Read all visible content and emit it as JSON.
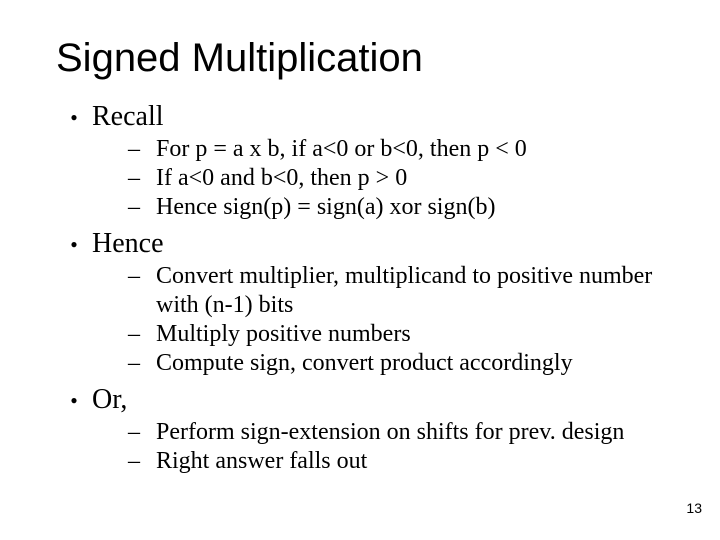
{
  "title": {
    "text": "Signed Multiplication",
    "fontsize": 40
  },
  "bullets": {
    "level1_fontsize": 28,
    "level2_fontsize": 24,
    "dot_char": "●",
    "dash_char": "–",
    "items": [
      {
        "label": "Recall",
        "sub": [
          "For p = a x b, if a<0 or b<0, then p < 0",
          "If a<0 and b<0, then p > 0",
          "Hence sign(p) = sign(a) xor sign(b)"
        ]
      },
      {
        "label": "Hence",
        "sub": [
          "Convert multiplier, multiplicand to positive number with (n-1) bits",
          "Multiply positive numbers",
          "Compute sign, convert product accordingly"
        ]
      },
      {
        "label": "Or,",
        "sub": [
          "Perform sign-extension on shifts for prev. design",
          "Right answer falls out"
        ]
      }
    ]
  },
  "pagenum": {
    "text": "13",
    "fontsize": 14
  },
  "colors": {
    "bg": "#ffffff",
    "fg": "#000000"
  },
  "layout": {
    "b1_indent": 0,
    "b1_dot_width": 36,
    "b2_indent": 36,
    "b2_dash_width": 28,
    "b1_line_height": 36,
    "b2_line_height": 29,
    "group_gap": 4
  }
}
